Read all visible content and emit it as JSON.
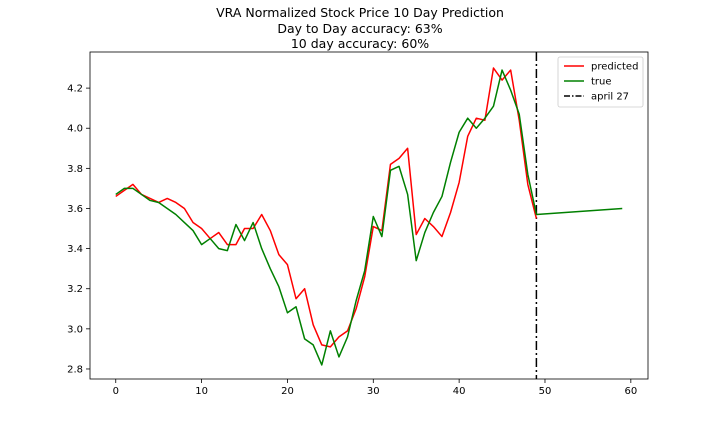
{
  "title_lines": [
    "VRA Normalized Stock Price 10 Day Prediction",
    "Day to Day accuracy: 63%",
    "10 day accuracy: 60%"
  ],
  "chart_data": {
    "type": "line",
    "title": "VRA Normalized Stock Price 10 Day Prediction",
    "subtitle": [
      "Day to Day accuracy: 63%",
      "10 day accuracy: 60%"
    ],
    "xlabel": "",
    "ylabel": "",
    "xlim": [
      -3,
      62
    ],
    "ylim": [
      2.75,
      4.38
    ],
    "xticks": [
      0,
      10,
      20,
      30,
      40,
      50,
      60
    ],
    "yticks": [
      2.8,
      3.0,
      3.2,
      3.4,
      3.6,
      3.8,
      4.0,
      4.2
    ],
    "xtick_labels": [
      "0",
      "10",
      "20",
      "30",
      "40",
      "50",
      "60"
    ],
    "ytick_labels": [
      "2.8",
      "3.0",
      "3.2",
      "3.4",
      "3.6",
      "3.8",
      "4.0",
      "4.2"
    ],
    "grid": false,
    "legend_position": "top-right",
    "series": [
      {
        "name": "predicted",
        "color": "#ff0000",
        "x": [
          0,
          1,
          2,
          3,
          4,
          5,
          6,
          7,
          8,
          9,
          10,
          11,
          12,
          13,
          14,
          15,
          16,
          17,
          18,
          19,
          20,
          21,
          22,
          23,
          24,
          25,
          26,
          27,
          28,
          29,
          30,
          31,
          32,
          33,
          34,
          35,
          36,
          37,
          38,
          39,
          40,
          41,
          42,
          43,
          44,
          45,
          46,
          47,
          48,
          49
        ],
        "y": [
          3.66,
          3.69,
          3.72,
          3.67,
          3.65,
          3.63,
          3.65,
          3.63,
          3.6,
          3.53,
          3.5,
          3.45,
          3.48,
          3.42,
          3.42,
          3.5,
          3.5,
          3.57,
          3.49,
          3.37,
          3.32,
          3.15,
          3.2,
          3.02,
          2.92,
          2.91,
          2.96,
          2.99,
          3.1,
          3.26,
          3.51,
          3.49,
          3.82,
          3.85,
          3.9,
          3.47,
          3.55,
          3.51,
          3.46,
          3.58,
          3.73,
          3.96,
          4.05,
          4.04,
          4.3,
          4.24,
          4.29,
          4.04,
          3.72,
          3.55
        ]
      },
      {
        "name": "true",
        "color": "#008000",
        "x": [
          0,
          1,
          2,
          3,
          4,
          5,
          6,
          7,
          8,
          9,
          10,
          11,
          12,
          13,
          14,
          15,
          16,
          17,
          18,
          19,
          20,
          21,
          22,
          23,
          24,
          25,
          26,
          27,
          28,
          29,
          30,
          31,
          32,
          33,
          34,
          35,
          36,
          37,
          38,
          39,
          40,
          41,
          42,
          43,
          44,
          45,
          46,
          47,
          48,
          49,
          59
        ],
        "y": [
          3.67,
          3.7,
          3.7,
          3.67,
          3.64,
          3.63,
          3.6,
          3.57,
          3.53,
          3.49,
          3.42,
          3.45,
          3.4,
          3.39,
          3.52,
          3.44,
          3.53,
          3.4,
          3.3,
          3.21,
          3.08,
          3.11,
          2.95,
          2.92,
          2.82,
          2.99,
          2.86,
          2.96,
          3.14,
          3.29,
          3.56,
          3.46,
          3.79,
          3.81,
          3.67,
          3.34,
          3.48,
          3.58,
          3.66,
          3.83,
          3.98,
          4.05,
          4.0,
          4.05,
          4.11,
          4.29,
          4.19,
          4.07,
          3.77,
          3.57,
          3.6
        ]
      }
    ],
    "vline": {
      "name": "april 27",
      "x": 49,
      "color": "#000000",
      "style": "dash-dot"
    },
    "legend": [
      "predicted",
      "true",
      "april 27"
    ]
  }
}
